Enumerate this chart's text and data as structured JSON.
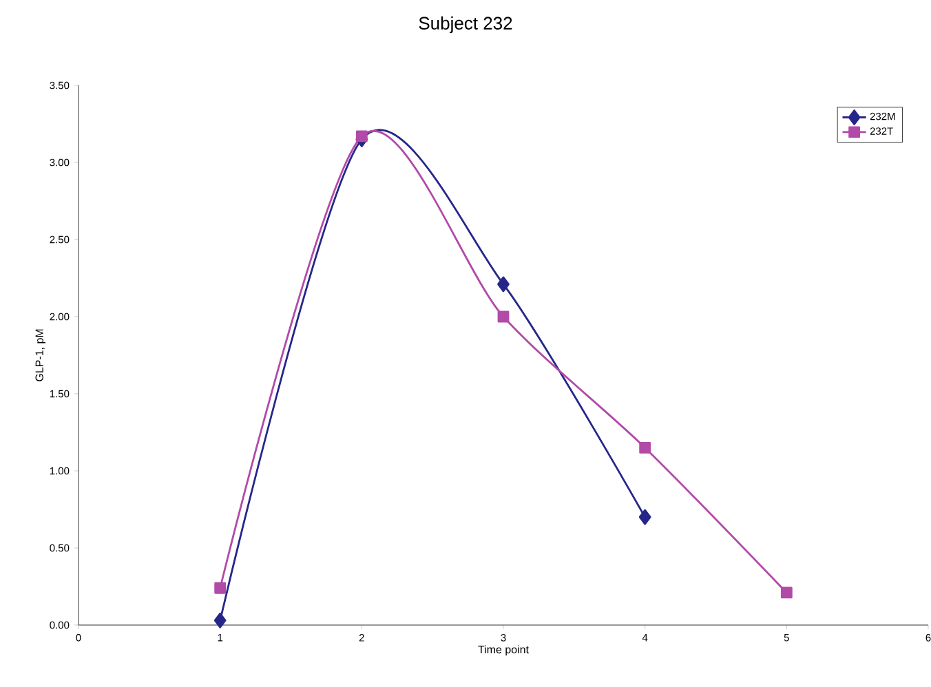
{
  "chart_data": {
    "type": "line",
    "title": "Subject 232",
    "xlabel": "Time point",
    "ylabel": "GLP-1, pM",
    "x": [
      1,
      2,
      3,
      4,
      5
    ],
    "xlim": [
      0,
      6
    ],
    "xticks": [
      0,
      1,
      2,
      3,
      4,
      5,
      6
    ],
    "ylim": [
      0,
      3.5
    ],
    "yticks": [
      {
        "value": 0,
        "label": "0.00"
      },
      {
        "value": 0.5,
        "label": "0.50"
      },
      {
        "value": 1,
        "label": "1.00"
      },
      {
        "value": 1.5,
        "label": "1.50"
      },
      {
        "value": 2,
        "label": "2.00"
      },
      {
        "value": 2.5,
        "label": "2.50"
      },
      {
        "value": 3,
        "label": "3.00"
      },
      {
        "value": 3.5,
        "label": "3.50"
      }
    ],
    "grid": false,
    "legend": "top right",
    "line_style": "solid",
    "series": [
      {
        "name": "232M",
        "color": "#26268a",
        "marker": "diamond",
        "values": [
          0.03,
          3.15,
          2.21,
          0.7,
          null
        ]
      },
      {
        "name": "232T",
        "color": "#b24aa8",
        "marker": "square",
        "values": [
          0.24,
          3.17,
          2.0,
          1.15,
          0.21
        ]
      }
    ]
  }
}
